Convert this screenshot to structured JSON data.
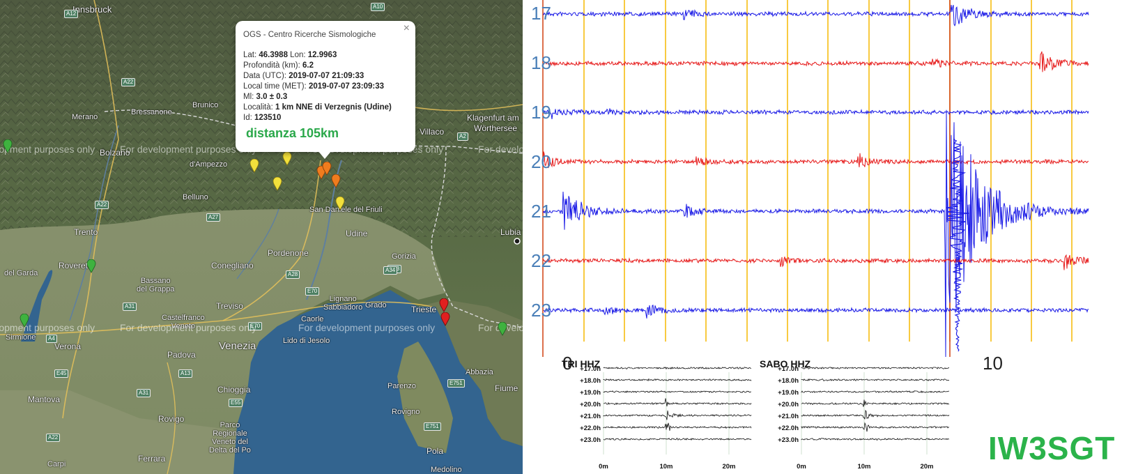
{
  "map": {
    "watermark": "For development purposes only",
    "places": [
      {
        "id": "innsbruck",
        "label": "Innsbruck"
      },
      {
        "id": "merano",
        "label": "Merano"
      },
      {
        "id": "bolzano",
        "label": "Bolzano"
      },
      {
        "id": "bressanone",
        "label": "Bressanone"
      },
      {
        "id": "brunico",
        "label": "Brunico"
      },
      {
        "id": "ampezzo",
        "label": "d'Ampezzo"
      },
      {
        "id": "villaco",
        "label": "Villaco"
      },
      {
        "id": "klagenfurt",
        "label": "Klagenfurt am"
      },
      {
        "id": "worthersee",
        "label": "Wörthersee"
      },
      {
        "id": "trento",
        "label": "Trento"
      },
      {
        "id": "belluno",
        "label": "Belluno"
      },
      {
        "id": "sandaniele",
        "label": "San Daniele del Friuli"
      },
      {
        "id": "udine",
        "label": "Udine"
      },
      {
        "id": "lubiana",
        "label": "Lubia"
      },
      {
        "id": "pordenone",
        "label": "Pordenone"
      },
      {
        "id": "conegliano",
        "label": "Conegliano"
      },
      {
        "id": "rovereto",
        "label": "Rovereto"
      },
      {
        "id": "bassano",
        "label": "Bassano\ndel Grappa"
      },
      {
        "id": "gorizia",
        "label": "Gorizia"
      },
      {
        "id": "treviso",
        "label": "Treviso"
      },
      {
        "id": "lignano",
        "label": "Lignano\nSabbiadoro"
      },
      {
        "id": "grado",
        "label": "Grado"
      },
      {
        "id": "castelfranco",
        "label": "Castelfranco\nVeneto"
      },
      {
        "id": "caorle",
        "label": "Caorle"
      },
      {
        "id": "trieste",
        "label": "Trieste"
      },
      {
        "id": "sirmione",
        "label": "Sirmione"
      },
      {
        "id": "gardasee",
        "label": "del Garda"
      },
      {
        "id": "verona",
        "label": "Verona"
      },
      {
        "id": "venezia",
        "label": "Venezia"
      },
      {
        "id": "lido",
        "label": "Lido di Jesolo"
      },
      {
        "id": "padova",
        "label": "Padova"
      },
      {
        "id": "chioggia",
        "label": "Chioggia"
      },
      {
        "id": "mantova",
        "label": "Mantova"
      },
      {
        "id": "rovigo",
        "label": "Rovigo"
      },
      {
        "id": "parco",
        "label": "Parco\nRegionale\nVeneto del\nDelta del Po"
      },
      {
        "id": "ferrara",
        "label": "Ferrara"
      },
      {
        "id": "parenzo",
        "label": "Parenzo"
      },
      {
        "id": "rovigno",
        "label": "Rovigno"
      },
      {
        "id": "pola",
        "label": "Pola"
      },
      {
        "id": "medolino",
        "label": "Medolino"
      },
      {
        "id": "abbazia",
        "label": "Abbazia"
      },
      {
        "id": "fiume",
        "label": "Fiume"
      },
      {
        "id": "carpi",
        "label": "Carpi"
      }
    ],
    "roads": [
      "A12",
      "A10",
      "A22",
      "A22",
      "A2",
      "A27",
      "A28",
      "A23",
      "A31",
      "E70",
      "A34",
      "E70",
      "A4",
      "A13",
      "E55",
      "A31",
      "E45",
      "A22",
      "E751",
      "E751"
    ],
    "popup": {
      "title": "OGS - Centro Ricerche Sismologiche",
      "close": "×",
      "lat_label": "Lat:",
      "lat": "46.3988",
      "lon_label": "Lon:",
      "lon": "12.9963",
      "depth_label": "Profondità (km):",
      "depth": "6.2",
      "date_label": "Data (UTC):",
      "date": "2019-07-07 21:09:33",
      "local_label": "Local time (MET):",
      "local": "2019-07-07 23:09:33",
      "ml_label": "Ml:",
      "ml": "3.0 ± 0.3",
      "loc_label": "Località:",
      "loc": "1 km NNE di Verzegnis (Udine)",
      "id_label": "Id:",
      "id": "123510",
      "distance": "distanza 105km"
    },
    "colors": {
      "quake_orange": "#f07c1e",
      "quake_yellow": "#f2e03c",
      "quake_red": "#e02020",
      "quake_green": "#3fb23f"
    }
  },
  "seismogram": {
    "hours": [
      "17",
      "18",
      "19",
      "20",
      "21",
      "22",
      "23"
    ],
    "x_ticks": [
      "0",
      "10"
    ],
    "colors": {
      "blue": "#1a1ae6",
      "red": "#e61a1a",
      "grid": "#f5b800"
    },
    "callsign": "IW3SGT"
  },
  "mini": [
    {
      "title": "TRI HHZ",
      "rows": [
        "+17.0h",
        "+18.0h",
        "+19.0h",
        "+20.0h",
        "+21.0h",
        "+22.0h",
        "+23.0h"
      ],
      "x": [
        "0m",
        "10m",
        "20m"
      ]
    },
    {
      "title": "SABO HHZ",
      "rows": [
        "+17.0h",
        "+18.0h",
        "+19.0h",
        "+20.0h",
        "+21.0h",
        "+22.0h",
        "+23.0h"
      ],
      "x": [
        "0m",
        "10m",
        "20m"
      ]
    }
  ]
}
